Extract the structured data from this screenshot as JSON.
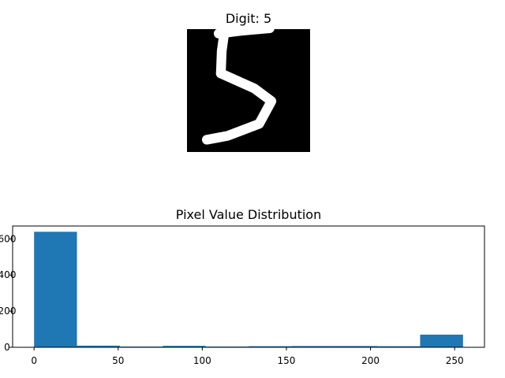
{
  "chart_data": [
    {
      "type": "image",
      "title": "Digit: 5",
      "colormap": "gray",
      "image_size": [
        28,
        28
      ],
      "ink_strokes": [
        [
          [
            7.2,
            1.0
          ],
          [
            13.0,
            0.3
          ],
          [
            18.8,
            -0.2
          ]
        ],
        [
          [
            8.5,
            0.6
          ],
          [
            7.9,
            5.0
          ],
          [
            7.7,
            10.1
          ]
        ],
        [
          [
            7.7,
            10.1
          ],
          [
            15.3,
            13.5
          ],
          [
            19.2,
            16.4
          ],
          [
            16.4,
            21.6
          ],
          [
            9.3,
            24.3
          ],
          [
            4.5,
            25.2
          ]
        ]
      ]
    },
    {
      "type": "bar",
      "title": "Pixel Value Distribution",
      "bins": [
        {
          "x0": 0.0,
          "x1": 25.5,
          "count": 639
        },
        {
          "x0": 25.5,
          "x1": 51.0,
          "count": 9
        },
        {
          "x0": 51.0,
          "x1": 76.5,
          "count": 4
        },
        {
          "x0": 76.5,
          "x1": 102.0,
          "count": 8
        },
        {
          "x0": 102.0,
          "x1": 127.5,
          "count": 4
        },
        {
          "x0": 127.5,
          "x1": 153.0,
          "count": 6
        },
        {
          "x0": 153.0,
          "x1": 178.5,
          "count": 7
        },
        {
          "x0": 178.5,
          "x1": 204.0,
          "count": 7
        },
        {
          "x0": 204.0,
          "x1": 229.5,
          "count": 6
        },
        {
          "x0": 229.5,
          "x1": 255.0,
          "count": 70
        }
      ],
      "bar_color": "#1f77b4",
      "xticks": [
        0,
        50,
        100,
        150,
        200,
        250
      ],
      "xlim": [
        -12.75,
        267.75
      ],
      "ylim": [
        0,
        670.95
      ],
      "yticks": [
        0,
        200,
        400,
        600
      ]
    }
  ]
}
